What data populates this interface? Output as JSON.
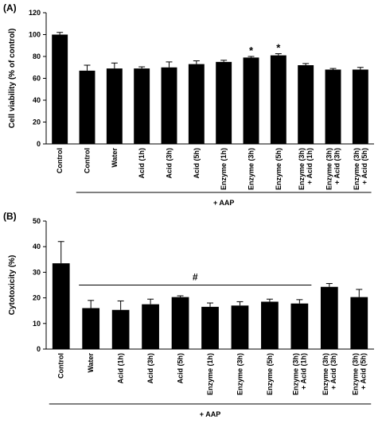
{
  "chart_data": [
    {
      "type": "bar",
      "panel_label": "(A)",
      "ylabel": "Cell viability (% of control)",
      "categories": [
        "Control",
        "Control",
        "Water",
        "Acid (1h)",
        "Acid (3h)",
        "Acid (5h)",
        "Enzyme (1h)",
        "Enzyme (3h)",
        "Enzyme (5h)",
        "Enzyme (3h)\n+ Acid (1h)",
        "Enzyme (3h)\n+ Acid (3h)",
        "Enzyme (3h)\n+ Acid (5h)"
      ],
      "values": [
        100,
        67,
        69,
        69,
        70,
        73,
        75,
        79,
        81,
        72,
        68,
        68
      ],
      "errors": [
        2,
        5,
        5,
        1.5,
        5,
        3,
        1.5,
        1,
        1.5,
        1.5,
        1,
        2
      ],
      "color": "#000000",
      "ylim": [
        0,
        120
      ],
      "yticks": [
        0,
        20,
        40,
        60,
        80,
        100,
        120
      ],
      "annotations": [
        {
          "text": "*",
          "category": "Enzyme (3h)"
        },
        {
          "text": "*",
          "category": "Enzyme (5h)"
        }
      ],
      "group_label": {
        "text": "+ AAP",
        "from_index": 1,
        "to_index": 11
      }
    },
    {
      "type": "bar",
      "panel_label": "(B)",
      "ylabel": "Cytotoxicity (%)",
      "categories": [
        "Control",
        "Water",
        "Acid (1h)",
        "Acid (3h)",
        "Acid (5h)",
        "Enzyme (1h)",
        "Enzyme (3h)",
        "Enzyme (5h)",
        "Enzyme (3h)\n+ Acid (1h)",
        "Enzyme (3h)\n+ Acid (3h)",
        "Enzyme (3h)\n+ Acid (5h)"
      ],
      "values": [
        33.5,
        16,
        15.3,
        17.5,
        20.3,
        16.5,
        17,
        18.5,
        17.8,
        24.3,
        20.3
      ],
      "errors": [
        8.5,
        3,
        3.5,
        2,
        0.5,
        1.5,
        1.5,
        1,
        1.5,
        1.3,
        3
      ],
      "color": "#000000",
      "ylim": [
        0,
        50
      ],
      "yticks": [
        0,
        10,
        20,
        30,
        40,
        50
      ],
      "bracket": {
        "text": "#",
        "from_index": 1,
        "to_index": 8,
        "y": 25
      },
      "group_label": {
        "text": "+ AAP",
        "from_index": 0,
        "to_index": 10
      }
    }
  ]
}
